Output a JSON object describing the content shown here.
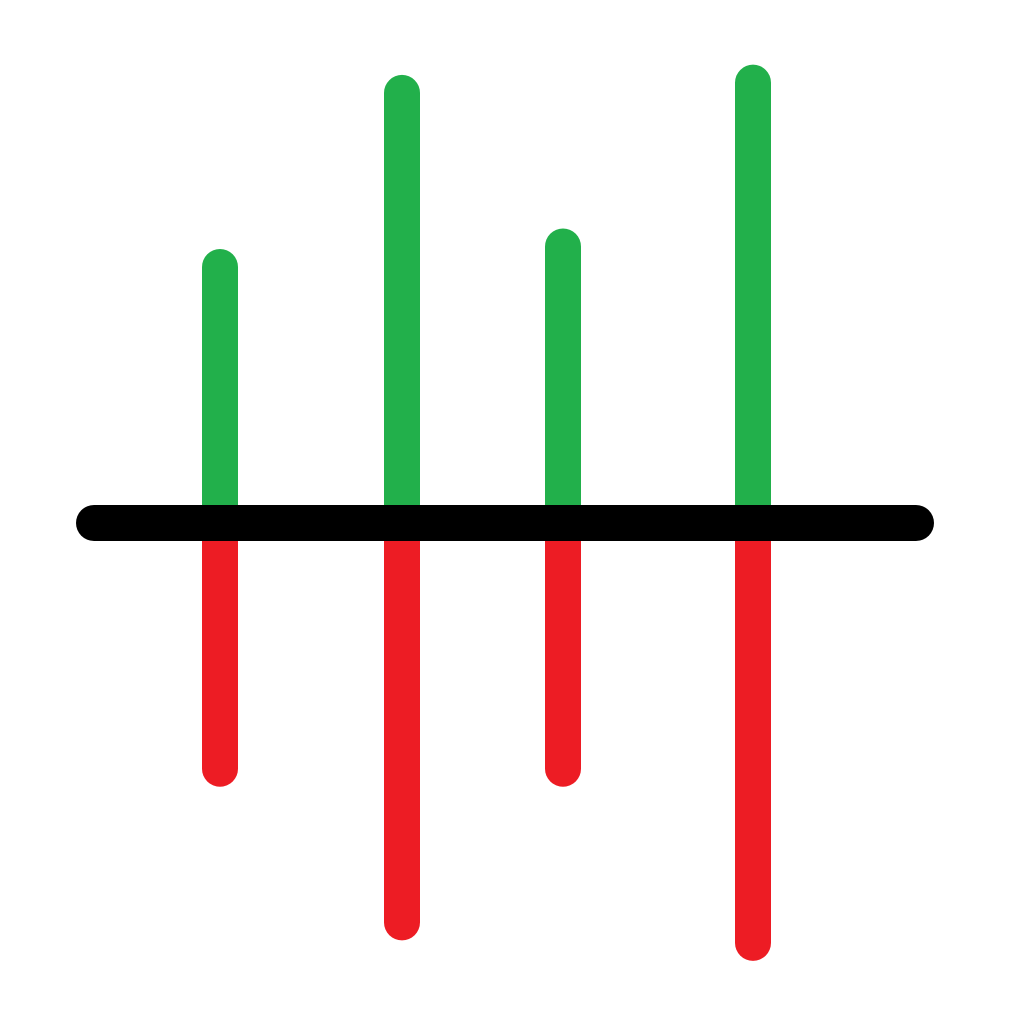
{
  "icon": {
    "name": "bidirectional-bars-icon",
    "colors": {
      "background": "#ffffff",
      "positive": "#22b04b",
      "negative": "#ed1c24",
      "baseline": "#000000"
    },
    "bars": [
      {
        "name": "bar-1",
        "up": 0.25,
        "down": 0.24
      },
      {
        "name": "bar-2",
        "up": 0.42,
        "down": 0.39
      },
      {
        "name": "bar-3",
        "up": 0.27,
        "down": 0.24
      },
      {
        "name": "bar-4",
        "up": 0.43,
        "down": 0.41
      }
    ]
  }
}
